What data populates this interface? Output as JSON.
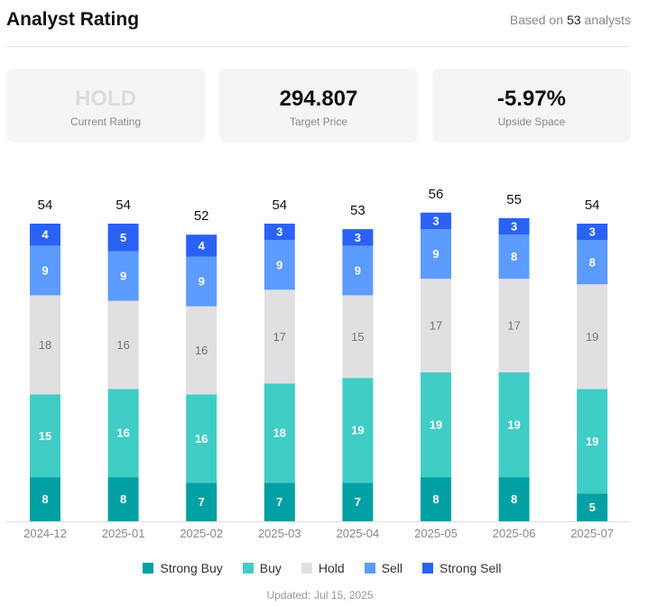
{
  "header": {
    "title": "Analyst Rating",
    "based_prefix": "Based on",
    "analyst_count": "53",
    "based_suffix": "analysts"
  },
  "cards": [
    {
      "value": "HOLD",
      "label": "Current Rating"
    },
    {
      "value": "294.807",
      "label": "Target Price"
    },
    {
      "value": "-5.97%",
      "label": "Upside Space"
    }
  ],
  "chart_data": {
    "type": "bar",
    "stacked": true,
    "categories": [
      "2024-12",
      "2025-01",
      "2025-02",
      "2025-03",
      "2025-04",
      "2025-05",
      "2025-06",
      "2025-07"
    ],
    "totals": [
      54,
      54,
      52,
      54,
      53,
      56,
      55,
      54
    ],
    "series": [
      {
        "name": "Strong Buy",
        "color": "#00a0a4",
        "values": [
          8,
          8,
          7,
          7,
          7,
          8,
          8,
          5
        ]
      },
      {
        "name": "Buy",
        "color": "#3fcdc5",
        "values": [
          15,
          16,
          16,
          18,
          19,
          19,
          19,
          19
        ]
      },
      {
        "name": "Hold",
        "color": "#e0e0e2",
        "values": [
          18,
          16,
          16,
          17,
          15,
          17,
          17,
          19
        ]
      },
      {
        "name": "Sell",
        "color": "#5c9bff",
        "values": [
          9,
          9,
          9,
          9,
          9,
          9,
          8,
          8
        ]
      },
      {
        "name": "Strong Sell",
        "color": "#2a62f5",
        "values": [
          4,
          5,
          4,
          3,
          3,
          3,
          3,
          3
        ]
      }
    ],
    "legend": "bottom",
    "grid": false
  },
  "footer": {
    "updated_label": "Updated:",
    "updated_date": "Jul 15, 2025"
  }
}
